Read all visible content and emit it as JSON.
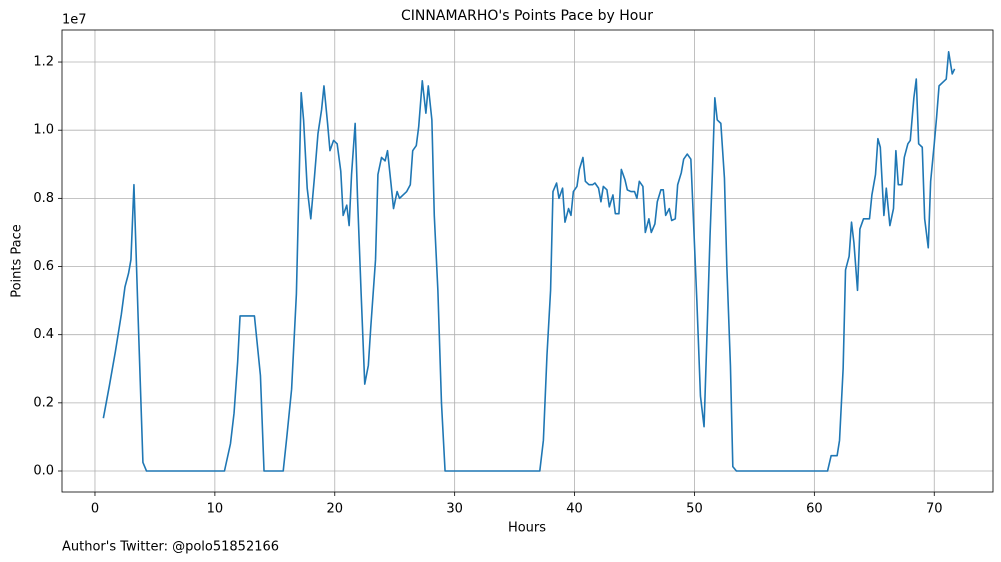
{
  "chart_data": {
    "type": "line",
    "title": "CINNAMARHO's Points Pace by Hour",
    "x_label": "Hours",
    "y_label": "Points Pace",
    "y_offset_label": "1e7",
    "footer": "Author's Twitter: @polo51852166",
    "color": "#1f77b4",
    "grid": true,
    "xlim": [
      -2.75,
      74.9
    ],
    "ylim": [
      -0.0616,
      1.294
    ],
    "xticks": [
      0,
      10,
      20,
      30,
      40,
      50,
      60,
      70
    ],
    "yticks": [
      {
        "value": 0,
        "label": "0.0"
      },
      0.2,
      0.4,
      0.6,
      0.8,
      {
        "value": 1,
        "label": "1.0"
      },
      1.2
    ],
    "x": [
      0.7,
      1.2,
      1.7,
      2.2,
      2.5,
      2.8,
      3.0,
      3.25,
      3.6,
      4.0,
      4.3,
      10.8,
      11.3,
      11.6,
      11.9,
      12.1,
      12.5,
      13.0,
      13.3,
      13.8,
      14.1,
      15.7,
      16.0,
      16.4,
      16.8,
      17.2,
      17.4,
      17.7,
      18.0,
      18.3,
      18.6,
      18.9,
      19.1,
      19.4,
      19.6,
      19.9,
      20.2,
      20.5,
      20.7,
      21.0,
      21.2,
      21.4,
      21.7,
      21.9,
      22.2,
      22.5,
      22.8,
      23.0,
      23.4,
      23.6,
      23.9,
      24.2,
      24.4,
      24.7,
      24.9,
      25.2,
      25.4,
      25.7,
      26.0,
      26.3,
      26.5,
      26.8,
      27.0,
      27.3,
      27.6,
      27.8,
      28.1,
      28.3,
      28.6,
      28.9,
      29.2,
      37.1,
      37.4,
      37.7,
      38.0,
      38.2,
      38.5,
      38.7,
      39.0,
      39.2,
      39.5,
      39.7,
      39.9,
      40.2,
      40.4,
      40.7,
      40.9,
      41.2,
      41.5,
      41.7,
      42.0,
      42.2,
      42.4,
      42.7,
      42.9,
      43.2,
      43.4,
      43.7,
      43.9,
      44.2,
      44.4,
      44.7,
      45.0,
      45.2,
      45.4,
      45.7,
      45.9,
      46.2,
      46.4,
      46.7,
      46.9,
      47.2,
      47.4,
      47.6,
      47.9,
      48.1,
      48.4,
      48.6,
      48.9,
      49.1,
      49.4,
      49.7,
      49.9,
      50.2,
      50.5,
      50.8,
      51.0,
      51.3,
      51.5,
      51.7,
      51.9,
      52.2,
      52.5,
      52.7,
      53.0,
      53.2,
      53.5,
      61.1,
      61.4,
      61.9,
      62.1,
      62.4,
      62.6,
      62.9,
      63.1,
      63.3,
      63.6,
      63.8,
      64.1,
      64.3,
      64.6,
      64.8,
      65.1,
      65.3,
      65.5,
      65.8,
      66.0,
      66.3,
      66.6,
      66.8,
      67.0,
      67.3,
      67.5,
      67.8,
      68.0,
      68.3,
      68.5,
      68.7,
      69.0,
      69.2,
      69.5,
      69.7,
      70.0,
      70.2,
      70.4,
      70.7,
      71.0,
      71.2,
      71.5,
      71.7
    ],
    "values": [
      0.155,
      0.25,
      0.35,
      0.46,
      0.54,
      0.58,
      0.62,
      0.84,
      0.45,
      0.025,
      0.0,
      0.0,
      0.08,
      0.17,
      0.32,
      0.455,
      0.455,
      0.455,
      0.455,
      0.28,
      0.0,
      0.0,
      0.1,
      0.24,
      0.52,
      1.11,
      1.03,
      0.83,
      0.74,
      0.86,
      0.99,
      1.06,
      1.13,
      1.02,
      0.94,
      0.97,
      0.96,
      0.88,
      0.75,
      0.78,
      0.72,
      0.87,
      1.02,
      0.8,
      0.52,
      0.255,
      0.31,
      0.42,
      0.62,
      0.87,
      0.92,
      0.91,
      0.94,
      0.84,
      0.77,
      0.82,
      0.8,
      0.81,
      0.82,
      0.84,
      0.94,
      0.955,
      1.01,
      1.145,
      1.05,
      1.13,
      1.03,
      0.75,
      0.53,
      0.2,
      0.0,
      0.0,
      0.09,
      0.34,
      0.53,
      0.82,
      0.845,
      0.8,
      0.83,
      0.73,
      0.77,
      0.75,
      0.82,
      0.835,
      0.885,
      0.92,
      0.85,
      0.84,
      0.84,
      0.845,
      0.83,
      0.79,
      0.835,
      0.825,
      0.775,
      0.81,
      0.755,
      0.755,
      0.885,
      0.855,
      0.825,
      0.82,
      0.82,
      0.8,
      0.85,
      0.835,
      0.7,
      0.74,
      0.7,
      0.725,
      0.79,
      0.825,
      0.825,
      0.75,
      0.77,
      0.735,
      0.74,
      0.84,
      0.875,
      0.915,
      0.93,
      0.915,
      0.75,
      0.5,
      0.22,
      0.13,
      0.35,
      0.69,
      0.88,
      1.095,
      1.03,
      1.02,
      0.86,
      0.6,
      0.31,
      0.013,
      0.0,
      0.0,
      0.045,
      0.045,
      0.09,
      0.3,
      0.59,
      0.63,
      0.73,
      0.67,
      0.53,
      0.71,
      0.74,
      0.74,
      0.74,
      0.81,
      0.87,
      0.975,
      0.95,
      0.75,
      0.83,
      0.72,
      0.77,
      0.94,
      0.84,
      0.84,
      0.92,
      0.96,
      0.97,
      1.095,
      1.15,
      0.96,
      0.95,
      0.74,
      0.655,
      0.85,
      0.96,
      1.04,
      1.13,
      1.14,
      1.15,
      1.23,
      1.165,
      1.18
    ]
  }
}
